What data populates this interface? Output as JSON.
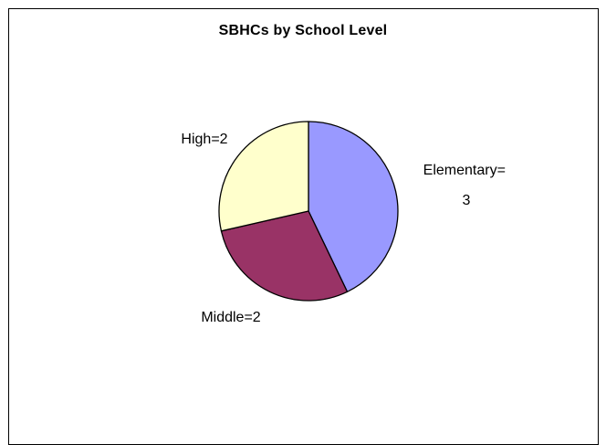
{
  "chart_data": {
    "type": "pie",
    "title": "SBHCs by School Level",
    "start_angle_deg": 0,
    "direction": "clockwise",
    "slices": [
      {
        "category": "Elementary",
        "value": 3,
        "label_lines": [
          "Elementary=",
          "3"
        ],
        "color": "#9999FF"
      },
      {
        "category": "Middle",
        "value": 2,
        "label_lines": [
          "Middle=2"
        ],
        "color": "#993366"
      },
      {
        "category": "High",
        "value": 2,
        "label_lines": [
          "High=2"
        ],
        "color": "#FFFFCC"
      }
    ],
    "legend": "none",
    "outline_color": "#000000"
  }
}
